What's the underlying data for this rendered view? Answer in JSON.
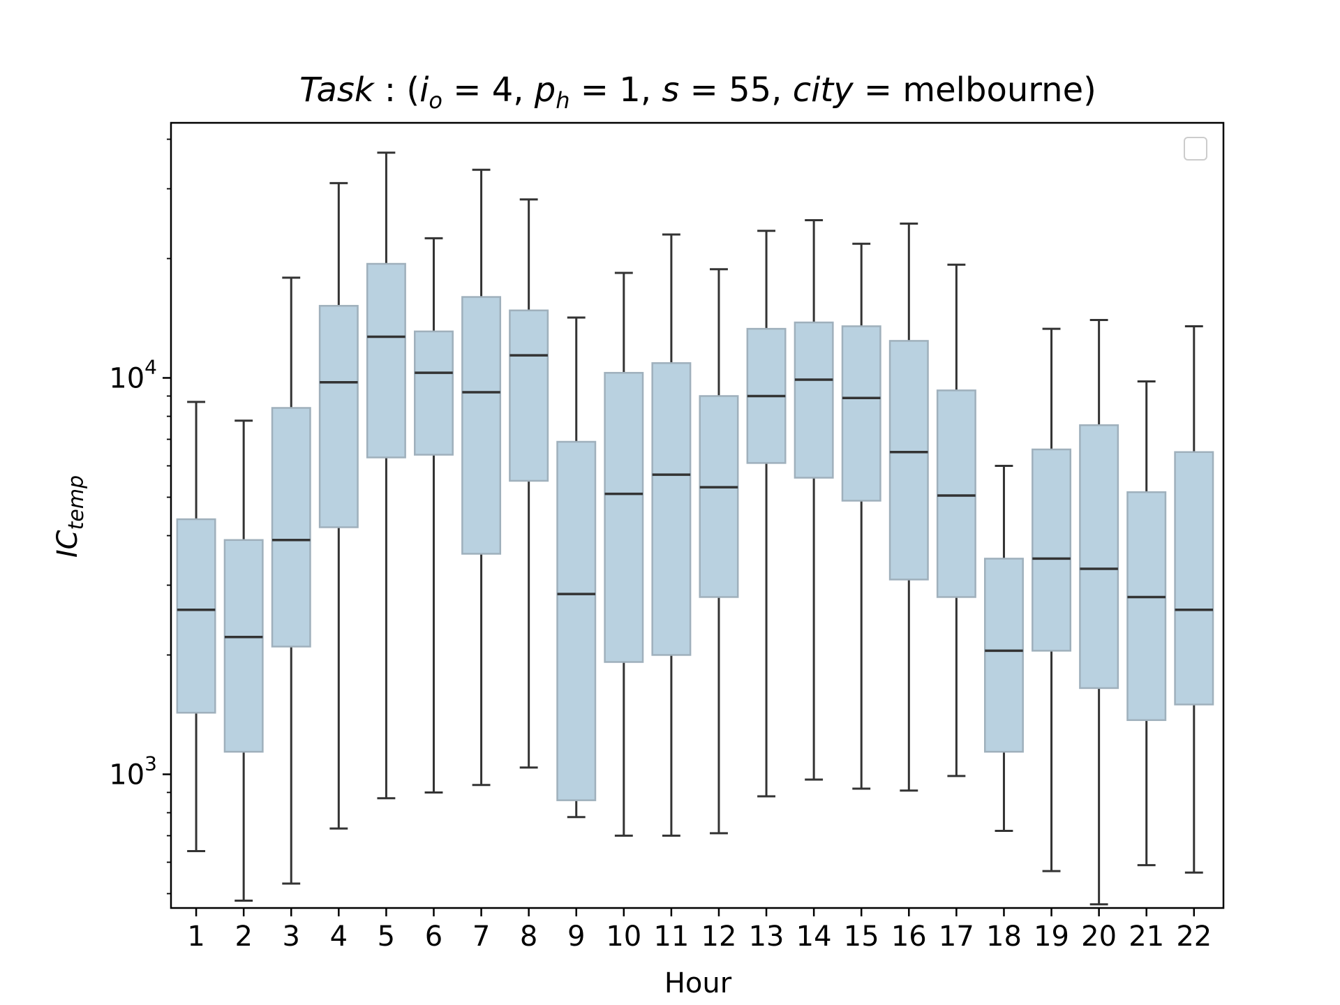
{
  "chart_data": {
    "type": "box",
    "title": "Task : (i_o = 4, p_h = 1, s = 55, city = melbourne)",
    "title_parts": {
      "lead": "Task",
      "colon": " : (",
      "i": "i",
      "i_sub": "o",
      "i_val": " = 4, ",
      "p": "p",
      "p_sub": "h",
      "p_val": " = 1, ",
      "s": "s",
      "s_val": " = 55, ",
      "city": "city",
      "city_val": " = melbourne)"
    },
    "xlabel": "Hour",
    "ylabel": "IC_temp",
    "ylabel_parts": {
      "main": "IC",
      "sub": "temp"
    },
    "yscale": "log",
    "ylim": [
      460,
      44000
    ],
    "ytick_labels": [
      {
        "value": 1000,
        "base": "10",
        "exp": "3"
      },
      {
        "value": 10000,
        "base": "10",
        "exp": "4"
      }
    ],
    "legend": {
      "placement": "upper right",
      "entries": []
    },
    "box_color": "#b9d1e0",
    "box_edge_color": "#9fb0bc",
    "line_color": "#333333",
    "categories": [
      "1",
      "2",
      "3",
      "4",
      "5",
      "6",
      "7",
      "8",
      "9",
      "10",
      "11",
      "12",
      "13",
      "14",
      "15",
      "16",
      "17",
      "18",
      "19",
      "20",
      "21",
      "22"
    ],
    "boxes": [
      {
        "whislo": 640,
        "q1": 1430,
        "med": 2600,
        "q3": 4400,
        "whishi": 8700
      },
      {
        "whislo": 480,
        "q1": 1140,
        "med": 2220,
        "q3": 3900,
        "whishi": 7800
      },
      {
        "whislo": 530,
        "q1": 2100,
        "med": 3900,
        "q3": 8400,
        "whishi": 17900
      },
      {
        "whislo": 730,
        "q1": 4200,
        "med": 9750,
        "q3": 15200,
        "whishi": 31000
      },
      {
        "whislo": 870,
        "q1": 6300,
        "med": 12700,
        "q3": 19400,
        "whishi": 37000
      },
      {
        "whislo": 900,
        "q1": 6400,
        "med": 10300,
        "q3": 13100,
        "whishi": 22500
      },
      {
        "whislo": 940,
        "q1": 3600,
        "med": 9200,
        "q3": 16000,
        "whishi": 33500
      },
      {
        "whislo": 1040,
        "q1": 5500,
        "med": 11400,
        "q3": 14800,
        "whishi": 28200
      },
      {
        "whislo": 780,
        "q1": 860,
        "med": 2850,
        "q3": 6900,
        "whishi": 14200
      },
      {
        "whislo": 700,
        "q1": 1920,
        "med": 5100,
        "q3": 10300,
        "whishi": 18400
      },
      {
        "whislo": 700,
        "q1": 2000,
        "med": 5700,
        "q3": 10900,
        "whishi": 23000
      },
      {
        "whislo": 710,
        "q1": 2800,
        "med": 5300,
        "q3": 9000,
        "whishi": 18800
      },
      {
        "whislo": 880,
        "q1": 6100,
        "med": 9000,
        "q3": 13300,
        "whishi": 23500
      },
      {
        "whislo": 970,
        "q1": 5600,
        "med": 9900,
        "q3": 13800,
        "whishi": 25000
      },
      {
        "whislo": 920,
        "q1": 4900,
        "med": 8900,
        "q3": 13500,
        "whishi": 21800
      },
      {
        "whislo": 910,
        "q1": 3100,
        "med": 6500,
        "q3": 12400,
        "whishi": 24500
      },
      {
        "whislo": 990,
        "q1": 2800,
        "med": 5050,
        "q3": 9300,
        "whishi": 19300
      },
      {
        "whislo": 720,
        "q1": 1140,
        "med": 2050,
        "q3": 3500,
        "whishi": 6000
      },
      {
        "whislo": 570,
        "q1": 2050,
        "med": 3500,
        "q3": 6600,
        "whishi": 13300
      },
      {
        "whislo": 470,
        "q1": 1650,
        "med": 3300,
        "q3": 7600,
        "whishi": 14000
      },
      {
        "whislo": 590,
        "q1": 1370,
        "med": 2800,
        "q3": 5150,
        "whishi": 9800
      },
      {
        "whislo": 565,
        "q1": 1500,
        "med": 2600,
        "q3": 6500,
        "whishi": 13500
      }
    ]
  }
}
